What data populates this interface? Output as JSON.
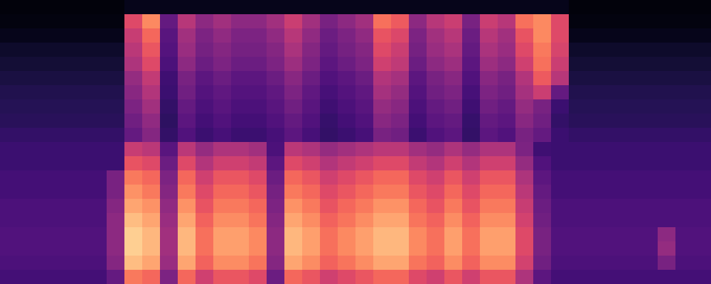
{
  "chart_data": {
    "type": "heatmap",
    "color": "magma",
    "tick_labels": false,
    "color_range": [
      0,
      1
    ],
    "cells": [
      [
        0.02,
        0.02,
        0.02,
        0.02,
        0.02,
        0.02,
        0.02,
        0.05,
        0.05,
        0.05,
        0.05,
        0.05,
        0.05,
        0.05,
        0.05,
        0.05,
        0.05,
        0.05,
        0.05,
        0.05,
        0.05,
        0.05,
        0.05,
        0.05,
        0.05,
        0.05,
        0.05,
        0.05,
        0.05,
        0.05,
        0.05,
        0.05,
        0.02,
        0.02,
        0.02,
        0.02,
        0.02,
        0.02,
        0.02,
        0.02
      ],
      [
        0.03,
        0.03,
        0.03,
        0.03,
        0.03,
        0.03,
        0.03,
        0.6,
        0.75,
        0.3,
        0.5,
        0.4,
        0.45,
        0.4,
        0.4,
        0.45,
        0.55,
        0.45,
        0.35,
        0.4,
        0.45,
        0.7,
        0.65,
        0.4,
        0.5,
        0.55,
        0.35,
        0.55,
        0.5,
        0.7,
        0.75,
        0.6,
        0.03,
        0.03,
        0.03,
        0.03,
        0.03,
        0.03,
        0.03,
        0.03
      ],
      [
        0.05,
        0.05,
        0.05,
        0.05,
        0.05,
        0.05,
        0.05,
        0.54,
        0.68,
        0.27,
        0.45,
        0.36,
        0.41,
        0.36,
        0.36,
        0.41,
        0.5,
        0.41,
        0.32,
        0.36,
        0.41,
        0.63,
        0.59,
        0.36,
        0.45,
        0.5,
        0.32,
        0.5,
        0.45,
        0.63,
        0.75,
        0.6,
        0.05,
        0.05,
        0.05,
        0.05,
        0.05,
        0.05,
        0.05,
        0.05
      ],
      [
        0.08,
        0.08,
        0.08,
        0.08,
        0.08,
        0.08,
        0.08,
        0.51,
        0.64,
        0.26,
        0.43,
        0.34,
        0.38,
        0.34,
        0.34,
        0.38,
        0.47,
        0.38,
        0.3,
        0.34,
        0.38,
        0.6,
        0.55,
        0.34,
        0.43,
        0.47,
        0.3,
        0.47,
        0.43,
        0.6,
        0.72,
        0.58,
        0.08,
        0.08,
        0.08,
        0.08,
        0.08,
        0.08,
        0.08,
        0.08
      ],
      [
        0.1,
        0.1,
        0.1,
        0.1,
        0.1,
        0.1,
        0.1,
        0.48,
        0.6,
        0.24,
        0.4,
        0.32,
        0.36,
        0.32,
        0.32,
        0.36,
        0.44,
        0.36,
        0.28,
        0.32,
        0.36,
        0.56,
        0.52,
        0.32,
        0.4,
        0.44,
        0.28,
        0.44,
        0.4,
        0.56,
        0.7,
        0.55,
        0.1,
        0.1,
        0.1,
        0.1,
        0.1,
        0.1,
        0.1,
        0.1
      ],
      [
        0.12,
        0.12,
        0.12,
        0.12,
        0.12,
        0.12,
        0.12,
        0.42,
        0.53,
        0.21,
        0.35,
        0.28,
        0.32,
        0.28,
        0.28,
        0.32,
        0.39,
        0.32,
        0.25,
        0.28,
        0.32,
        0.49,
        0.46,
        0.28,
        0.35,
        0.39,
        0.25,
        0.39,
        0.35,
        0.49,
        0.65,
        0.5,
        0.12,
        0.12,
        0.12,
        0.12,
        0.12,
        0.12,
        0.12,
        0.12
      ],
      [
        0.14,
        0.14,
        0.14,
        0.14,
        0.14,
        0.14,
        0.14,
        0.39,
        0.49,
        0.2,
        0.33,
        0.26,
        0.29,
        0.26,
        0.26,
        0.29,
        0.36,
        0.29,
        0.23,
        0.26,
        0.29,
        0.46,
        0.42,
        0.26,
        0.33,
        0.36,
        0.23,
        0.36,
        0.33,
        0.46,
        0.55,
        0.3,
        0.14,
        0.14,
        0.14,
        0.14,
        0.14,
        0.14,
        0.14,
        0.14
      ],
      [
        0.15,
        0.15,
        0.15,
        0.15,
        0.15,
        0.15,
        0.15,
        0.36,
        0.45,
        0.18,
        0.3,
        0.24,
        0.27,
        0.24,
        0.24,
        0.27,
        0.33,
        0.27,
        0.21,
        0.24,
        0.27,
        0.42,
        0.39,
        0.24,
        0.3,
        0.33,
        0.21,
        0.33,
        0.3,
        0.42,
        0.35,
        0.2,
        0.15,
        0.15,
        0.15,
        0.15,
        0.15,
        0.15,
        0.15,
        0.15
      ],
      [
        0.16,
        0.16,
        0.16,
        0.16,
        0.16,
        0.16,
        0.16,
        0.33,
        0.41,
        0.17,
        0.28,
        0.22,
        0.25,
        0.22,
        0.22,
        0.25,
        0.3,
        0.25,
        0.19,
        0.22,
        0.25,
        0.39,
        0.36,
        0.22,
        0.28,
        0.3,
        0.19,
        0.3,
        0.28,
        0.39,
        0.33,
        0.18,
        0.16,
        0.16,
        0.16,
        0.16,
        0.16,
        0.16,
        0.16,
        0.16
      ],
      [
        0.18,
        0.18,
        0.18,
        0.18,
        0.18,
        0.18,
        0.18,
        0.3,
        0.38,
        0.18,
        0.25,
        0.2,
        0.23,
        0.2,
        0.2,
        0.23,
        0.28,
        0.23,
        0.18,
        0.2,
        0.23,
        0.35,
        0.33,
        0.2,
        0.25,
        0.28,
        0.18,
        0.28,
        0.25,
        0.35,
        0.3,
        0.2,
        0.18,
        0.18,
        0.18,
        0.18,
        0.18,
        0.18,
        0.18,
        0.18
      ],
      [
        0.2,
        0.2,
        0.2,
        0.2,
        0.2,
        0.2,
        0.2,
        0.54,
        0.51,
        0.27,
        0.51,
        0.42,
        0.48,
        0.48,
        0.45,
        0.24,
        0.51,
        0.48,
        0.42,
        0.45,
        0.48,
        0.51,
        0.51,
        0.45,
        0.42,
        0.48,
        0.42,
        0.48,
        0.48,
        0.36,
        0.21,
        0.2,
        0.2,
        0.2,
        0.2,
        0.2,
        0.2,
        0.2,
        0.2,
        0.2
      ],
      [
        0.2,
        0.2,
        0.2,
        0.2,
        0.2,
        0.2,
        0.2,
        0.63,
        0.6,
        0.32,
        0.6,
        0.49,
        0.56,
        0.56,
        0.53,
        0.28,
        0.6,
        0.56,
        0.49,
        0.53,
        0.56,
        0.6,
        0.6,
        0.53,
        0.49,
        0.56,
        0.49,
        0.56,
        0.56,
        0.42,
        0.25,
        0.2,
        0.2,
        0.2,
        0.2,
        0.2,
        0.2,
        0.2,
        0.2,
        0.2
      ],
      [
        0.22,
        0.22,
        0.22,
        0.22,
        0.22,
        0.22,
        0.35,
        0.72,
        0.68,
        0.36,
        0.68,
        0.56,
        0.64,
        0.64,
        0.6,
        0.32,
        0.68,
        0.64,
        0.56,
        0.6,
        0.64,
        0.68,
        0.68,
        0.6,
        0.56,
        0.64,
        0.56,
        0.64,
        0.64,
        0.48,
        0.28,
        0.22,
        0.22,
        0.22,
        0.22,
        0.22,
        0.22,
        0.22,
        0.22,
        0.22
      ],
      [
        0.22,
        0.22,
        0.22,
        0.22,
        0.22,
        0.22,
        0.35,
        0.77,
        0.72,
        0.38,
        0.72,
        0.6,
        0.68,
        0.68,
        0.64,
        0.34,
        0.72,
        0.68,
        0.6,
        0.64,
        0.68,
        0.72,
        0.72,
        0.64,
        0.6,
        0.68,
        0.6,
        0.68,
        0.68,
        0.51,
        0.3,
        0.22,
        0.22,
        0.22,
        0.22,
        0.22,
        0.22,
        0.22,
        0.22,
        0.22
      ],
      [
        0.24,
        0.24,
        0.24,
        0.24,
        0.24,
        0.24,
        0.38,
        0.81,
        0.77,
        0.41,
        0.77,
        0.63,
        0.72,
        0.72,
        0.68,
        0.36,
        0.77,
        0.72,
        0.63,
        0.68,
        0.72,
        0.77,
        0.77,
        0.68,
        0.63,
        0.72,
        0.63,
        0.72,
        0.72,
        0.54,
        0.32,
        0.24,
        0.24,
        0.24,
        0.24,
        0.24,
        0.24,
        0.24,
        0.24,
        0.24
      ],
      [
        0.24,
        0.24,
        0.24,
        0.24,
        0.24,
        0.24,
        0.4,
        0.86,
        0.81,
        0.43,
        0.81,
        0.67,
        0.76,
        0.76,
        0.71,
        0.38,
        0.81,
        0.76,
        0.67,
        0.71,
        0.76,
        0.81,
        0.81,
        0.71,
        0.67,
        0.76,
        0.67,
        0.76,
        0.76,
        0.57,
        0.33,
        0.24,
        0.24,
        0.24,
        0.24,
        0.24,
        0.24,
        0.24,
        0.24,
        0.24
      ],
      [
        0.25,
        0.25,
        0.25,
        0.25,
        0.25,
        0.25,
        0.4,
        0.9,
        0.85,
        0.45,
        0.85,
        0.7,
        0.8,
        0.8,
        0.75,
        0.4,
        0.85,
        0.8,
        0.7,
        0.75,
        0.8,
        0.85,
        0.85,
        0.75,
        0.7,
        0.8,
        0.7,
        0.8,
        0.8,
        0.6,
        0.35,
        0.25,
        0.25,
        0.25,
        0.25,
        0.25,
        0.25,
        0.4,
        0.25,
        0.25
      ],
      [
        0.25,
        0.25,
        0.25,
        0.25,
        0.25,
        0.25,
        0.4,
        0.9,
        0.85,
        0.45,
        0.85,
        0.7,
        0.8,
        0.8,
        0.75,
        0.4,
        0.85,
        0.8,
        0.7,
        0.75,
        0.8,
        0.85,
        0.85,
        0.75,
        0.7,
        0.8,
        0.7,
        0.8,
        0.8,
        0.6,
        0.35,
        0.25,
        0.25,
        0.25,
        0.25,
        0.25,
        0.25,
        0.42,
        0.25,
        0.25
      ],
      [
        0.24,
        0.24,
        0.24,
        0.24,
        0.24,
        0.24,
        0.38,
        0.86,
        0.81,
        0.43,
        0.81,
        0.67,
        0.76,
        0.76,
        0.71,
        0.38,
        0.81,
        0.76,
        0.67,
        0.71,
        0.76,
        0.81,
        0.81,
        0.71,
        0.67,
        0.76,
        0.67,
        0.76,
        0.76,
        0.57,
        0.33,
        0.24,
        0.24,
        0.24,
        0.24,
        0.24,
        0.24,
        0.35,
        0.24,
        0.24
      ],
      [
        0.22,
        0.22,
        0.22,
        0.22,
        0.22,
        0.22,
        0.3,
        0.72,
        0.68,
        0.36,
        0.68,
        0.56,
        0.64,
        0.64,
        0.6,
        0.32,
        0.68,
        0.64,
        0.56,
        0.6,
        0.64,
        0.68,
        0.68,
        0.6,
        0.56,
        0.64,
        0.56,
        0.64,
        0.64,
        0.48,
        0.28,
        0.22,
        0.22,
        0.22,
        0.22,
        0.22,
        0.22,
        0.22,
        0.22,
        0.22
      ]
    ]
  }
}
